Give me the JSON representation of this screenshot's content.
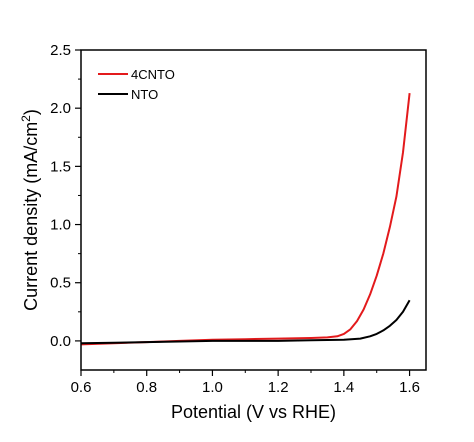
{
  "chart_data": {
    "type": "line",
    "xlabel": "Potential (V vs RHE)",
    "ylabel_main": "Current density (mA/cm",
    "ylabel_sup": "2",
    "ylabel_close": ")",
    "xlim": [
      0.6,
      1.65
    ],
    "ylim": [
      -0.25,
      2.5
    ],
    "x_ticks": [
      "0.6",
      "0.8",
      "1.0",
      "1.2",
      "1.4",
      "1.6"
    ],
    "y_ticks": [
      "0.0",
      "0.5",
      "1.0",
      "1.5",
      "2.0",
      "2.5"
    ],
    "legend_position": "top-left",
    "grid": false,
    "series": [
      {
        "name": "4CNTO",
        "color": "#e31a1c",
        "points": [
          [
            0.6,
            -0.03
          ],
          [
            0.7,
            -0.02
          ],
          [
            0.8,
            -0.01
          ],
          [
            0.9,
            0.0
          ],
          [
            1.0,
            0.01
          ],
          [
            1.1,
            0.015
          ],
          [
            1.2,
            0.02
          ],
          [
            1.3,
            0.025
          ],
          [
            1.35,
            0.03
          ],
          [
            1.38,
            0.04
          ],
          [
            1.4,
            0.06
          ],
          [
            1.42,
            0.1
          ],
          [
            1.44,
            0.17
          ],
          [
            1.46,
            0.27
          ],
          [
            1.48,
            0.4
          ],
          [
            1.5,
            0.56
          ],
          [
            1.52,
            0.75
          ],
          [
            1.54,
            0.98
          ],
          [
            1.56,
            1.24
          ],
          [
            1.58,
            1.62
          ],
          [
            1.6,
            2.13
          ]
        ]
      },
      {
        "name": "NTO",
        "color": "#000000",
        "points": [
          [
            0.6,
            -0.02
          ],
          [
            0.7,
            -0.015
          ],
          [
            0.8,
            -0.01
          ],
          [
            0.9,
            -0.005
          ],
          [
            1.0,
            0.0
          ],
          [
            1.1,
            0.0
          ],
          [
            1.2,
            0.0
          ],
          [
            1.3,
            0.005
          ],
          [
            1.4,
            0.01
          ],
          [
            1.45,
            0.02
          ],
          [
            1.48,
            0.04
          ],
          [
            1.5,
            0.06
          ],
          [
            1.52,
            0.09
          ],
          [
            1.54,
            0.13
          ],
          [
            1.56,
            0.18
          ],
          [
            1.58,
            0.25
          ],
          [
            1.6,
            0.35
          ]
        ]
      }
    ]
  }
}
